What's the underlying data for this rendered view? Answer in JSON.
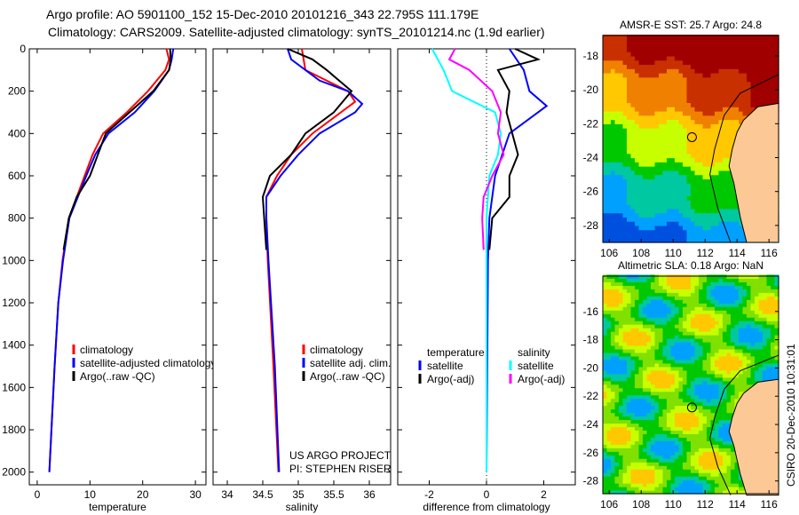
{
  "header": {
    "line1": "Argo profile: AO 5901100_152 15-Dec-2010 20101216_343 22.795S 111.179E",
    "line2": "Climatology: CARS2009. Satellite-adjusted climatology: synTS_20101214.nc (1.9d earlier)"
  },
  "side_label": "CSIRO 20-Dec-2010 10:31:01",
  "colors": {
    "climatology": "#ff0000",
    "satellite": "#0000ff",
    "argo": "#000000",
    "sal_satellite": "#00ffff",
    "sal_argo": "#ff00ff"
  },
  "chart_data": [
    {
      "type": "line",
      "xlabel": "temperature",
      "ylabel": "",
      "xlim": [
        -1.5,
        32
      ],
      "ylim": [
        2060,
        0
      ],
      "xticks": [
        0,
        10,
        20,
        30
      ],
      "yticks": [
        0,
        200,
        400,
        600,
        800,
        1000,
        1200,
        1400,
        1600,
        1800,
        2000
      ],
      "legend": [
        "climatology",
        "satellite-adjusted climatology",
        "Argo(..raw -QC)"
      ],
      "legend_placement": "lower-right",
      "series": [
        {
          "name": "climatology",
          "color": "#ff0000",
          "depth": [
            0,
            50,
            100,
            200,
            300,
            400,
            500,
            600,
            700,
            800,
            1000,
            1200,
            1500,
            2000
          ],
          "values": [
            24.5,
            25,
            24.3,
            21,
            17,
            12.5,
            10.5,
            9,
            7.5,
            6,
            4.8,
            4,
            3.3,
            2.3
          ]
        },
        {
          "name": "satellite-adjusted climatology",
          "color": "#0000ff",
          "depth": [
            0,
            50,
            100,
            200,
            300,
            400,
            500,
            600,
            700,
            800,
            1000,
            1200,
            1500,
            2000
          ],
          "values": [
            25.8,
            25.5,
            25,
            22.2,
            18.5,
            13.5,
            11,
            9.3,
            7.7,
            6.1,
            4.9,
            4,
            3.3,
            2.3
          ]
        },
        {
          "name": "Argo(..raw -QC)",
          "color": "#000000",
          "depth": [
            0,
            50,
            100,
            200,
            300,
            400,
            500,
            600,
            700,
            800,
            950
          ],
          "values": [
            25.2,
            25.3,
            25,
            22,
            17.5,
            13,
            11.5,
            10,
            7.5,
            6,
            5
          ]
        }
      ]
    },
    {
      "type": "line",
      "xlabel": "salinity",
      "ylabel": "",
      "xlim": [
        33.8,
        36.3
      ],
      "ylim": [
        2060,
        0
      ],
      "xticks": [
        34,
        34.5,
        35,
        35.5,
        36
      ],
      "legend": [
        "climatology",
        "satellite adj. clim.",
        "Argo(..raw -QC)"
      ],
      "legend_placement": "lower-right",
      "annotations": [
        "US ARGO PROJECT",
        "PI: STEPHEN RISER"
      ],
      "series": [
        {
          "name": "climatology",
          "color": "#ff0000",
          "depth": [
            0,
            100,
            200,
            250,
            300,
            400,
            500,
            600,
            700,
            800,
            1000,
            1500,
            2000
          ],
          "values": [
            35.05,
            35.1,
            35.7,
            35.8,
            35.6,
            35.2,
            34.9,
            34.7,
            34.55,
            34.55,
            34.57,
            34.65,
            34.72
          ]
        },
        {
          "name": "satellite adj. clim.",
          "color": "#0000ff",
          "depth": [
            0,
            50,
            150,
            200,
            260,
            300,
            400,
            500,
            600,
            700,
            800,
            1000,
            1500,
            2000
          ],
          "values": [
            34.85,
            34.9,
            35.3,
            35.7,
            35.9,
            35.8,
            35.3,
            35,
            34.75,
            34.55,
            34.55,
            34.58,
            34.67,
            34.73
          ]
        },
        {
          "name": "Argo(..raw -QC)",
          "color": "#000000",
          "depth": [
            0,
            50,
            100,
            200,
            300,
            400,
            500,
            600,
            700,
            800,
            950
          ],
          "values": [
            34.85,
            35.2,
            35.4,
            35.75,
            35.5,
            35.1,
            34.9,
            34.6,
            34.5,
            34.52,
            34.55
          ]
        }
      ]
    },
    {
      "type": "line",
      "xlabel": "difference from climatology",
      "ylabel": "",
      "xlim": [
        -3.1,
        3.1
      ],
      "ylim": [
        2060,
        0
      ],
      "xticks": [
        -2,
        0,
        2
      ],
      "legend": [
        "temperature",
        "satellite",
        "Argo(-adj)",
        "salinity",
        "satellite",
        "Argo(-adj)"
      ],
      "legend_placement": "lower-center",
      "series": [
        {
          "name": "temperature satellite",
          "color": "#0000ff",
          "depth": [
            0,
            100,
            200,
            270,
            400,
            600,
            800,
            1000,
            2000
          ],
          "values": [
            0.8,
            1.3,
            1.5,
            2.1,
            0.8,
            0.3,
            0.1,
            0.05,
            0
          ]
        },
        {
          "name": "temperature Argo(-adj)",
          "color": "#000000",
          "depth": [
            0,
            50,
            100,
            200,
            300,
            400,
            500,
            600,
            700,
            800,
            950
          ],
          "values": [
            1,
            1.8,
            0.4,
            0.8,
            0.7,
            0.9,
            1.1,
            0.8,
            0.8,
            0.2,
            0.1
          ]
        },
        {
          "name": "salinity satellite",
          "color": "#00ffff",
          "depth": [
            0,
            100,
            200,
            300,
            400,
            500,
            600,
            800,
            2000
          ],
          "values": [
            -1.9,
            -1.5,
            -1.2,
            0.3,
            0.5,
            0.4,
            0.1,
            0,
            0
          ]
        },
        {
          "name": "salinity Argo(-adj)",
          "color": "#ff00ff",
          "depth": [
            0,
            50,
            100,
            200,
            300,
            400,
            500,
            600,
            700,
            800,
            950
          ],
          "values": [
            -1.1,
            -1.3,
            -0.6,
            0.2,
            0.5,
            0.4,
            0.6,
            0.2,
            -0.1,
            -0.15,
            -0.1
          ]
        }
      ]
    }
  ],
  "maps": [
    {
      "title": "AMSR-E SST: 25.7 Argo: 24.8",
      "xticks": [
        106,
        108,
        110,
        112,
        114,
        116
      ],
      "yticks": [
        -18,
        -20,
        -22,
        -24,
        -26,
        -28
      ],
      "lonlim": [
        105.6,
        116.6
      ],
      "latlim": [
        -29,
        -16.8
      ],
      "float": {
        "lon": 111.179,
        "lat": -22.795
      }
    },
    {
      "title": "Altimetric SLA: 0.18 Argo: NaN",
      "xticks": [
        106,
        108,
        110,
        112,
        114,
        116
      ],
      "yticks": [
        -16,
        -18,
        -20,
        -22,
        -24,
        -26,
        -28
      ],
      "lonlim": [
        105.6,
        116.6
      ],
      "latlim": [
        -28.9,
        -13.5
      ],
      "float": {
        "lon": 111.179,
        "lat": -22.795
      }
    }
  ]
}
